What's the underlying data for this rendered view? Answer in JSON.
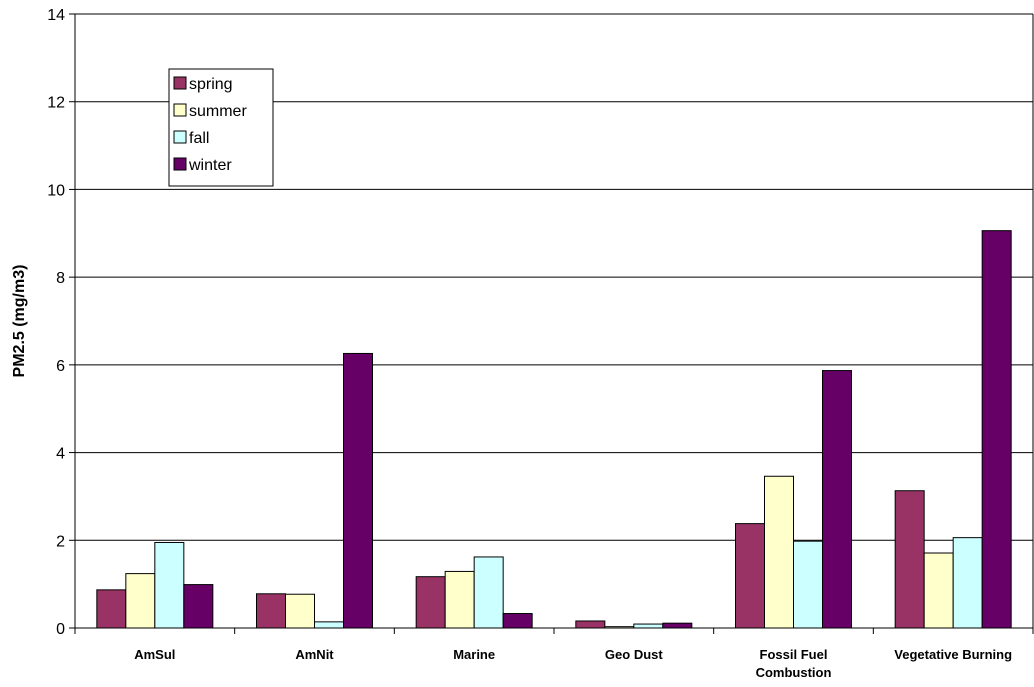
{
  "chart_data": {
    "type": "bar",
    "title": "",
    "xlabel": "",
    "ylabel": "PM2.5 (mg/m3)",
    "ylim": [
      0,
      14
    ],
    "yticks": [
      0,
      2,
      4,
      6,
      8,
      10,
      12,
      14
    ],
    "grid": true,
    "legend_position": "top-left",
    "categories": [
      [
        "AmSul"
      ],
      [
        "AmNit"
      ],
      [
        "Marine"
      ],
      [
        "Geo Dust"
      ],
      [
        "Fossil Fuel",
        "Combustion"
      ],
      [
        "Vegetative Burning"
      ]
    ],
    "series": [
      {
        "name": "spring",
        "color": "#993366",
        "values": [
          0.87,
          0.78,
          1.17,
          0.16,
          2.38,
          3.13
        ]
      },
      {
        "name": "summer",
        "color": "#ffffcc",
        "values": [
          1.24,
          0.77,
          1.29,
          0.03,
          3.46,
          1.71
        ]
      },
      {
        "name": "fall",
        "color": "#ccffff",
        "values": [
          1.95,
          0.14,
          1.62,
          0.09,
          1.98,
          2.06
        ]
      },
      {
        "name": "winter",
        "color": "#660066",
        "values": [
          0.99,
          6.26,
          0.33,
          0.11,
          5.87,
          9.06
        ]
      }
    ]
  }
}
